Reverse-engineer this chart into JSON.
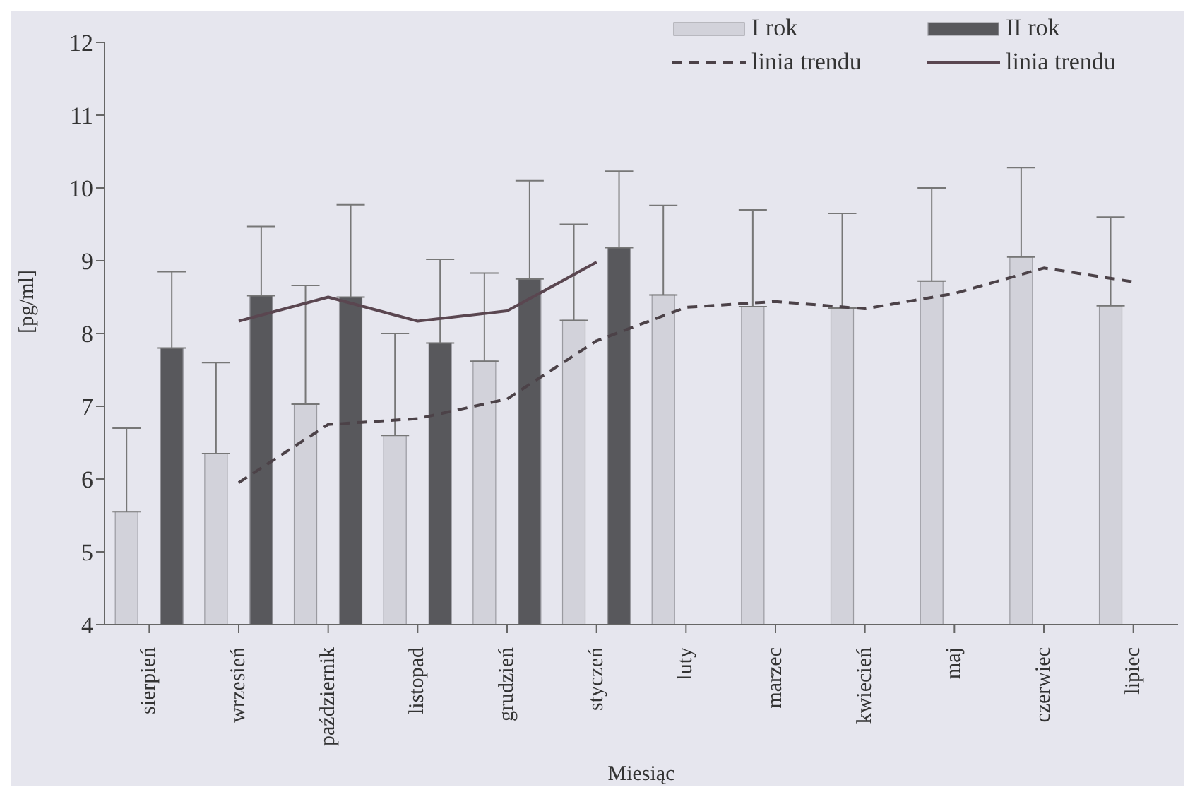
{
  "chart_data": {
    "type": "bar",
    "xlabel": "Miesiąc",
    "ylabel": "[pg/ml]",
    "categories": [
      "sierpień",
      "wrzesień",
      "październik",
      "listopad",
      "grudzień",
      "styczeń",
      "luty",
      "marzec",
      "kwiecień",
      "maj",
      "czerwiec",
      "lipiec"
    ],
    "series": [
      {
        "name": "I rok",
        "color": "#d2d2da",
        "values": [
          5.55,
          6.35,
          7.03,
          6.6,
          7.62,
          8.18,
          8.53,
          8.37,
          8.35,
          8.72,
          9.05,
          8.38
        ],
        "errors": [
          [
            5.55,
            6.7
          ],
          [
            6.35,
            7.6
          ],
          [
            7.03,
            8.66
          ],
          [
            6.6,
            8.0
          ],
          [
            7.62,
            8.83
          ],
          [
            8.18,
            9.5
          ],
          [
            8.53,
            9.76
          ],
          [
            8.37,
            9.7
          ],
          [
            8.35,
            9.65
          ],
          [
            8.72,
            10.0
          ],
          [
            9.05,
            10.28
          ],
          [
            8.38,
            9.6
          ]
        ]
      },
      {
        "name": "II rok",
        "color": "#58585c",
        "values": [
          7.8,
          8.52,
          8.5,
          7.87,
          8.75,
          9.18,
          null,
          null,
          null,
          null,
          null,
          null
        ],
        "errors": [
          [
            7.8,
            8.85
          ],
          [
            8.52,
            9.47
          ],
          [
            8.5,
            9.77
          ],
          [
            7.87,
            9.02
          ],
          [
            8.75,
            10.1
          ],
          [
            9.18,
            10.23
          ],
          null,
          null,
          null,
          null,
          null,
          null
        ]
      },
      {
        "name": "linia trendu",
        "type": "line",
        "line_style": "dashed",
        "color": "#4c4248",
        "values": [
          null,
          5.95,
          6.75,
          6.83,
          7.1,
          7.9,
          8.36,
          8.44,
          8.34,
          8.55,
          8.9,
          8.71
        ]
      },
      {
        "name": "linia trendu",
        "type": "line",
        "line_style": "solid",
        "color": "#5a4650",
        "values": [
          null,
          8.17,
          8.5,
          8.17,
          8.31,
          8.98,
          null,
          null,
          null,
          null,
          null,
          null
        ]
      }
    ],
    "ylim": [
      4,
      12
    ],
    "yticks": [
      4,
      5,
      6,
      7,
      8,
      9,
      10,
      11,
      12
    ],
    "grid": false,
    "legend": "top right"
  }
}
